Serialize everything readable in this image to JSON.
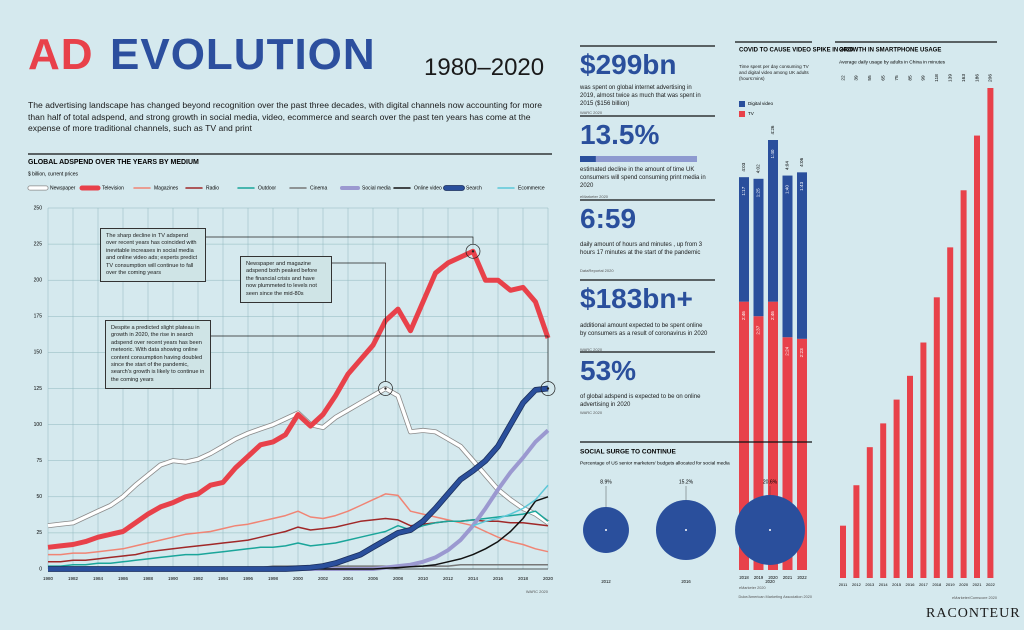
{
  "header": {
    "title_part1": "AD",
    "title_part2": "EVOLUTION",
    "years": "1980–2020",
    "intro": "The advertising landscape has changed beyond recognition over the past three decades, with digital channels now accounting for more than half of total adspend, and strong growth in social media, video, ecommerce and search over the past ten years has come at the expense of more traditional channels, such as TV and print"
  },
  "stats": [
    {
      "label": "$299bn",
      "text": "was spent on global internet advertising in 2019, almost twice as much that was spent in 2015 ($156 billion)",
      "source": "WARC 2020"
    },
    {
      "label": "13.5%",
      "value": 13.5,
      "text": "estimated decline in the amount of time UK consumers will spend consuming print media in 2020",
      "source": "eMarketer 2020"
    },
    {
      "label": "6:59",
      "text": "daily amount of hours and minutes , up from 3 hours 17 minutes at the start of the pandemic",
      "source": "DataReportal 2020"
    },
    {
      "label": "$183bn+",
      "text": "additional amount expected to be spent online by consumers as a result of coronavirus in 2020",
      "source": "WARC 2020"
    },
    {
      "label": "53%",
      "text": "of global adspend is expected to be on online advertising in 2020",
      "source": "WARC 2020"
    }
  ],
  "chart_data": [
    {
      "type": "line",
      "title": "GLOBAL ADSPEND OVER THE YEARS BY MEDIUM",
      "y_label": "$ billion, current prices",
      "source": "WARC 2020",
      "x": [
        1980,
        1981,
        1982,
        1983,
        1984,
        1985,
        1986,
        1987,
        1988,
        1989,
        1990,
        1991,
        1992,
        1993,
        1994,
        1995,
        1996,
        1997,
        1998,
        1999,
        2000,
        2001,
        2002,
        2003,
        2004,
        2005,
        2006,
        2007,
        2008,
        2009,
        2010,
        2011,
        2012,
        2013,
        2014,
        2015,
        2016,
        2017,
        2018,
        2019,
        2020
      ],
      "xlim": [
        1980,
        2020
      ],
      "xticks": [
        1980,
        1982,
        1984,
        1986,
        1988,
        1990,
        1992,
        1994,
        1996,
        1998,
        2000,
        2002,
        2004,
        2006,
        2008,
        2010,
        2012,
        2014,
        2016,
        2018,
        2020
      ],
      "ylim": [
        0,
        250
      ],
      "yticks": [
        0,
        25,
        50,
        75,
        100,
        125,
        150,
        175,
        200,
        225,
        250
      ],
      "grid": true,
      "series": [
        {
          "name": "Newspaper",
          "color": "#ffffff",
          "outline": "#8a8a8a",
          "values": [
            30,
            31,
            32,
            36,
            40,
            44,
            50,
            58,
            65,
            72,
            75,
            74,
            76,
            80,
            85,
            90,
            94,
            97,
            100,
            104,
            108,
            100,
            98,
            105,
            110,
            115,
            120,
            125,
            120,
            95,
            96,
            95,
            90,
            85,
            75,
            65,
            55,
            48,
            42,
            38,
            32
          ]
        },
        {
          "name": "Television",
          "color": "#e8414a",
          "values": [
            15,
            16,
            17,
            19,
            22,
            24,
            26,
            32,
            38,
            43,
            46,
            50,
            52,
            58,
            60,
            70,
            78,
            86,
            88,
            93,
            107,
            99,
            107,
            120,
            135,
            145,
            155,
            172,
            180,
            165,
            185,
            205,
            212,
            216,
            220,
            200,
            200,
            193,
            195,
            185,
            160
          ]
        },
        {
          "name": "Magazines",
          "color": "#f08474",
          "values": [
            10,
            10,
            11,
            11,
            12,
            13,
            14,
            16,
            18,
            20,
            22,
            24,
            25,
            26,
            28,
            30,
            31,
            33,
            35,
            37,
            40,
            36,
            35,
            37,
            40,
            44,
            48,
            52,
            51,
            40,
            38,
            36,
            34,
            32,
            30,
            26,
            22,
            19,
            17,
            14,
            12
          ]
        },
        {
          "name": "Radio",
          "color": "#a02828",
          "values": [
            5,
            5,
            6,
            6,
            7,
            8,
            9,
            10,
            12,
            13,
            14,
            15,
            16,
            17,
            18,
            19,
            20,
            22,
            24,
            26,
            29,
            27,
            28,
            29,
            31,
            33,
            34,
            35,
            34,
            30,
            31,
            32,
            33,
            33,
            34,
            33,
            33,
            32,
            32,
            31,
            30
          ]
        },
        {
          "name": "Outdoor",
          "color": "#1aa59a",
          "values": [
            2,
            2,
            3,
            3,
            4,
            4,
            5,
            6,
            7,
            8,
            9,
            10,
            10,
            11,
            12,
            13,
            14,
            15,
            15,
            16,
            18,
            16,
            17,
            18,
            20,
            22,
            24,
            26,
            30,
            27,
            30,
            32,
            33,
            33,
            34,
            35,
            36,
            37,
            38,
            40,
            33
          ]
        },
        {
          "name": "Cinema",
          "color": "#777777",
          "values": [
            1,
            1,
            1,
            1,
            1,
            1,
            1,
            1,
            1,
            1,
            1,
            1,
            1,
            1,
            1,
            1,
            1,
            1,
            2,
            2,
            2,
            2,
            2,
            2,
            2,
            2,
            2,
            2,
            2,
            2,
            2,
            2,
            2,
            3,
            3,
            3,
            3,
            3,
            3,
            3,
            3
          ]
        },
        {
          "name": "Social media",
          "color": "#9b99d0",
          "values": [
            0,
            0,
            0,
            0,
            0,
            0,
            0,
            0,
            0,
            0,
            0,
            0,
            0,
            0,
            0,
            0,
            0,
            0,
            0,
            0,
            0,
            0,
            0,
            0,
            0,
            0,
            0,
            1,
            2,
            3,
            5,
            8,
            13,
            20,
            30,
            42,
            55,
            67,
            77,
            88,
            96
          ]
        },
        {
          "name": "Online video",
          "color": "#111111",
          "values": [
            0,
            0,
            0,
            0,
            0,
            0,
            0,
            0,
            0,
            0,
            0,
            0,
            0,
            0,
            0,
            0,
            0,
            0,
            0,
            0,
            0,
            0,
            0,
            0,
            0,
            0,
            0,
            0.5,
            1,
            1.5,
            2,
            3,
            5,
            7,
            10,
            14,
            19,
            26,
            35,
            47,
            50
          ]
        },
        {
          "name": "Search",
          "color": "#2a4f9c",
          "outline": "#1b2f5c",
          "values": [
            0,
            0,
            0,
            0,
            0,
            0,
            0,
            0,
            0,
            0,
            0,
            0,
            0,
            0,
            0,
            0,
            0,
            0,
            0,
            0,
            0.5,
            1,
            2,
            4,
            7,
            10,
            15,
            20,
            25,
            27,
            33,
            42,
            52,
            62,
            68,
            75,
            85,
            100,
            115,
            124,
            125
          ]
        },
        {
          "name": "Ecommerce",
          "color": "#5cc8d8",
          "values": [
            null,
            null,
            null,
            null,
            null,
            null,
            null,
            null,
            null,
            null,
            null,
            null,
            null,
            null,
            null,
            null,
            null,
            null,
            null,
            null,
            null,
            null,
            null,
            null,
            null,
            null,
            null,
            null,
            null,
            null,
            null,
            null,
            null,
            null,
            30,
            33,
            35,
            38,
            42,
            48,
            58
          ]
        }
      ],
      "annotations": [
        "The sharp decline in TV adspend over recent years has coincided with inevitable increases in social media and online video ads; experts predict TV consumption will continue to fall over the coming years",
        "Newspaper and magazine adspend both peaked before the financial crisis and have now plummeted to levels not seen since the mid-80s",
        "Despite a predicted slight plateau in growth in 2020, the rise in search adspend over recent years has been meteoric. With data showing online content consumption having doubled since the start of the pandemic, search's growth is likely to continue in the coming years"
      ]
    },
    {
      "type": "bar",
      "stacked": true,
      "title": "COVID TO CAUSE VIDEO SPIKE IN 2020",
      "subtitle": "Time spent per day consuming TV and digital video among UK adults (hours:mins)",
      "source": "eMarketer 2020",
      "categories": [
        "2018",
        "2019",
        "2020",
        "2021",
        "2022"
      ],
      "series": [
        {
          "name": "Digital video",
          "color": "#2a4f9c",
          "values": [
            77,
            85,
            100,
            100,
            103
          ],
          "value_labels": [
            "1:17",
            "1:25",
            "1:40",
            "1:40",
            "1:43"
          ]
        },
        {
          "name": "TV",
          "color": "#e8414a",
          "values": [
            166,
            157,
            166,
            144,
            143
          ],
          "value_labels": [
            "2:46",
            "2:37",
            "2:46",
            "2:24",
            "2:23"
          ]
        }
      ],
      "total_labels": [
        "4:03",
        "4:02",
        "4:26",
        "4:04",
        "4:06"
      ]
    },
    {
      "type": "bar",
      "title": "GROWTH IN SMARTPHONE USAGE",
      "subtitle": "Average daily usage by adults in China in minutes",
      "source": "eMarketer/Comscore 2020",
      "categories": [
        "2011",
        "2012",
        "2013",
        "2014",
        "2015",
        "2016",
        "2017",
        "2018",
        "2019",
        "2020",
        "2021",
        "2022"
      ],
      "values": [
        22,
        39,
        55,
        65,
        75,
        85,
        99,
        118,
        139,
        163,
        186,
        206
      ],
      "color": "#e8414a"
    },
    {
      "type": "bubble",
      "title": "SOCIAL SURGE TO CONTINUE",
      "subtitle": "Percentage of US senior marketers' budgets allocated for social media",
      "source": "Duke/American Marketing Association 2020",
      "categories": [
        "2012",
        "2016",
        "2020"
      ],
      "values": [
        8.9,
        15.2,
        20.6
      ],
      "value_labels": [
        "8.9%",
        "15.2%",
        "20.6%"
      ],
      "color": "#2a4f9c"
    }
  ],
  "footer": {
    "brand": "RACONTEUR"
  }
}
